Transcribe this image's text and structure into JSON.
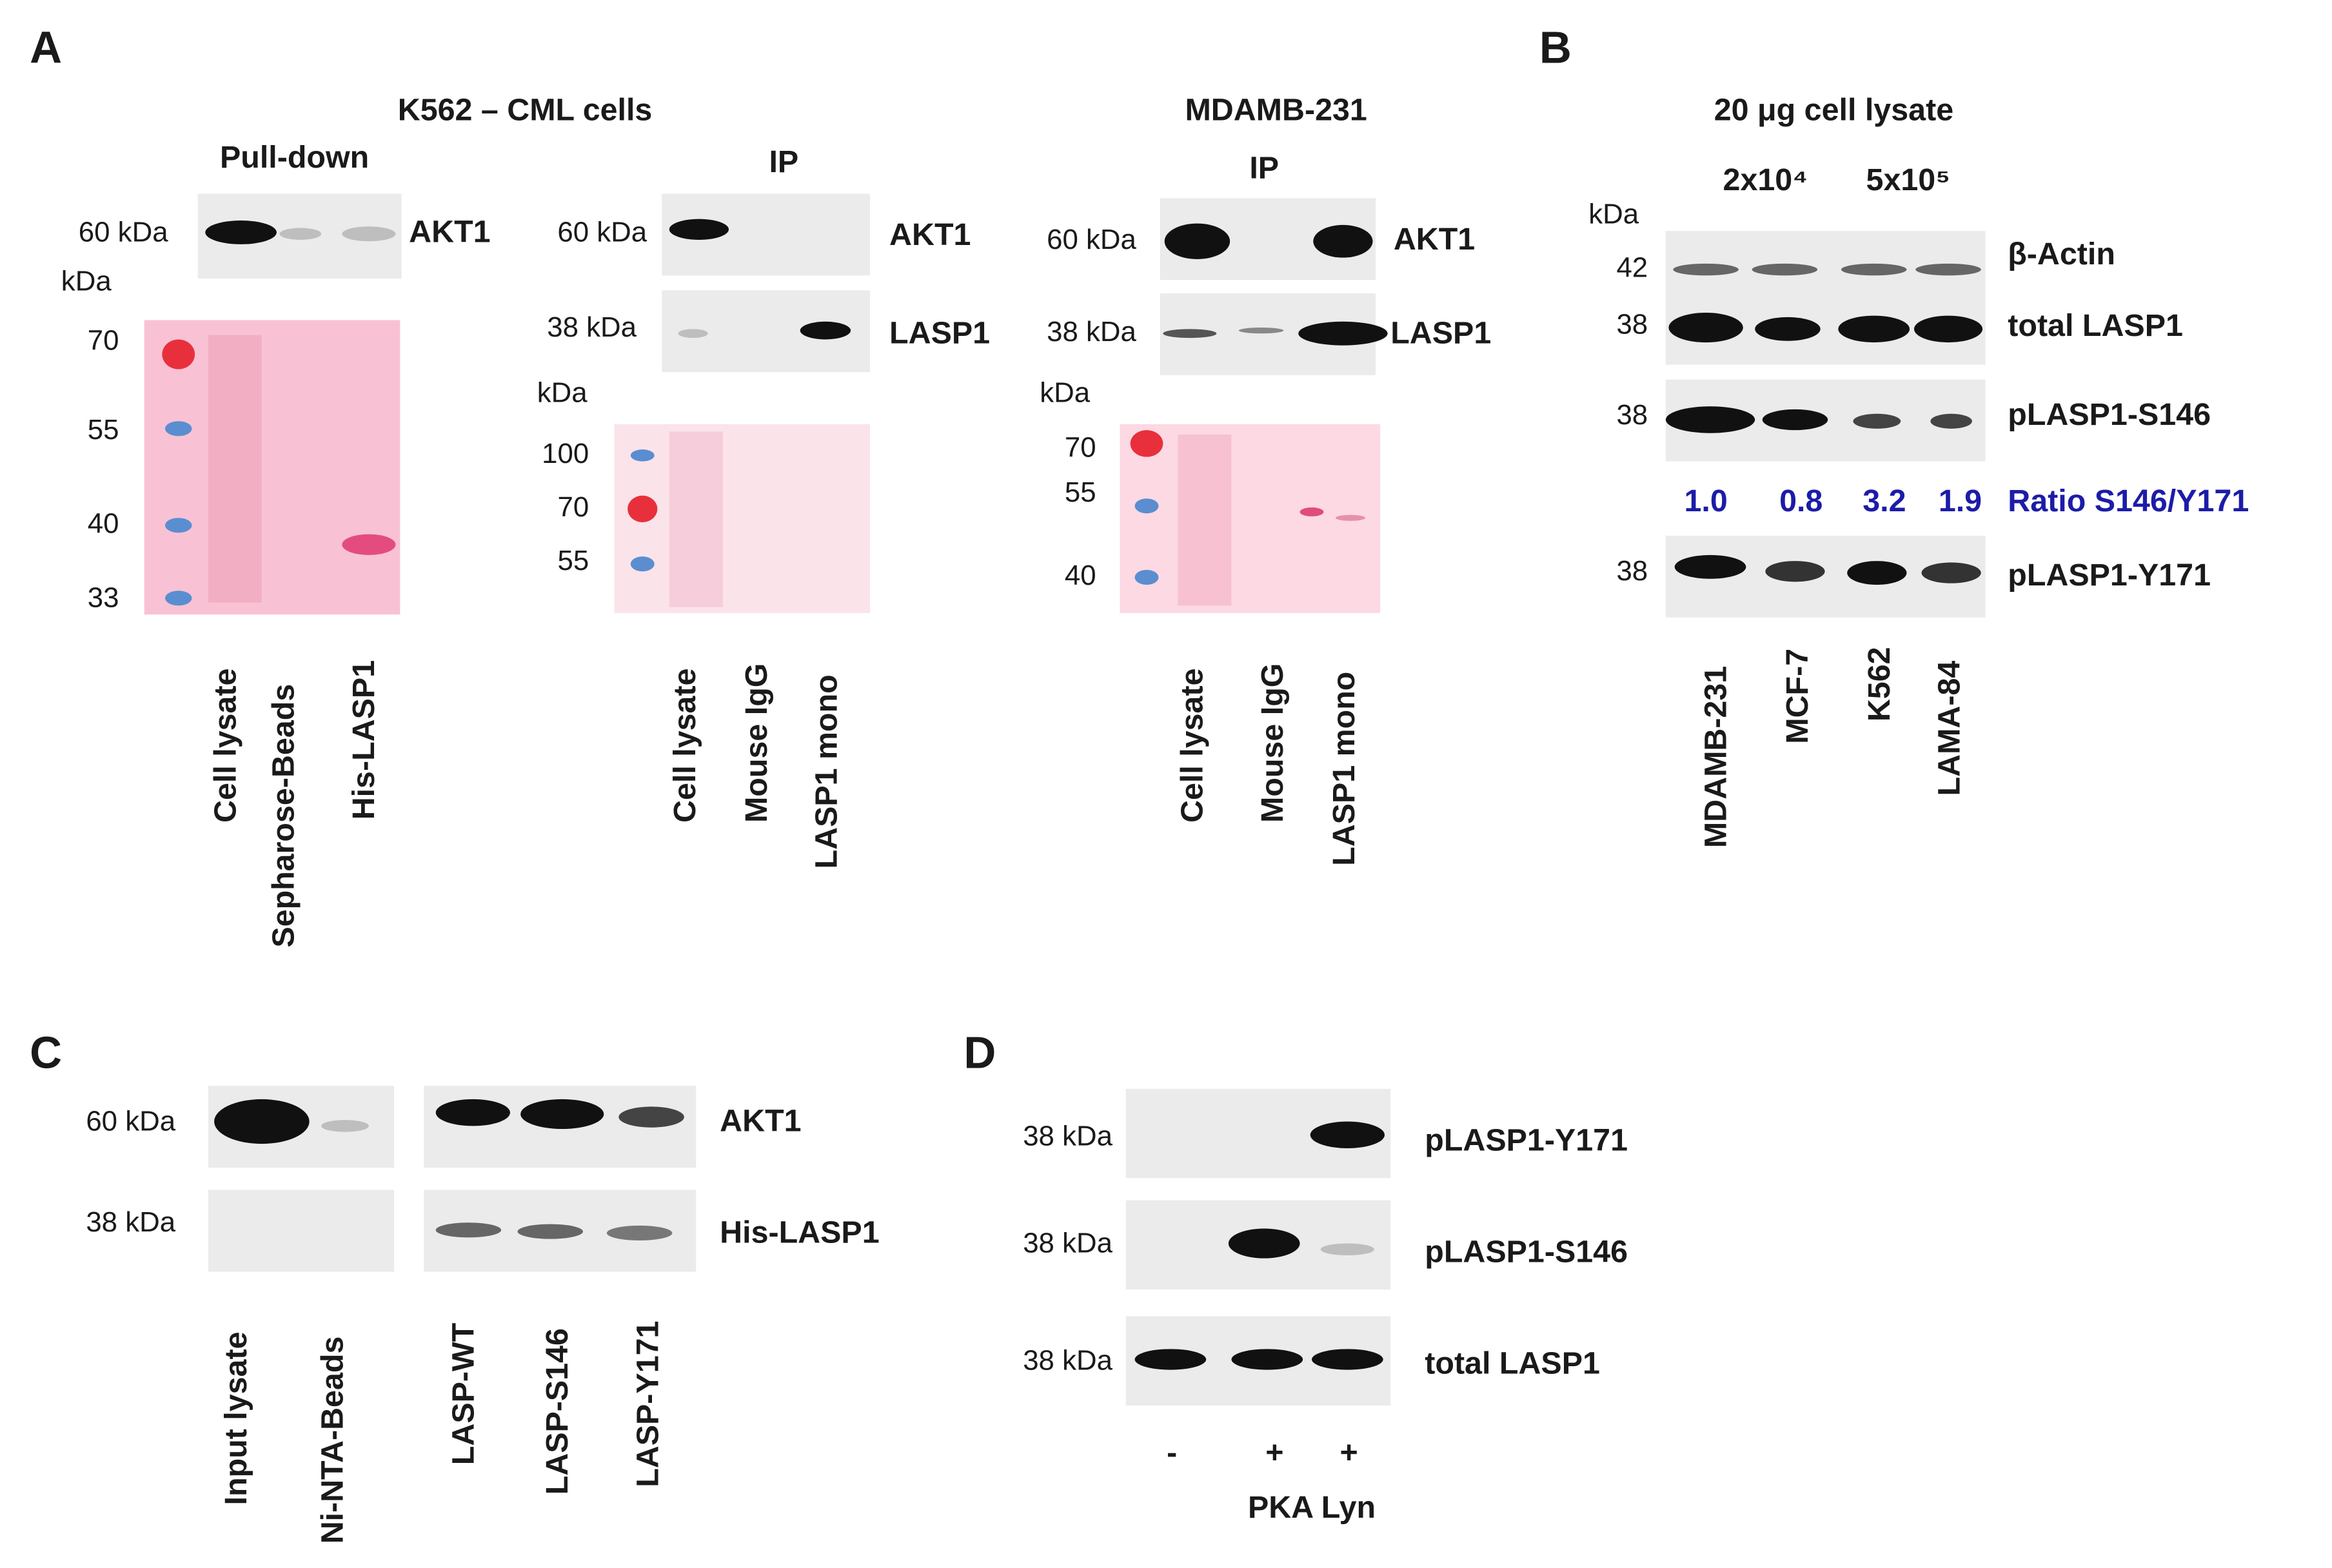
{
  "panel_labels": [
    "A",
    "B",
    "C",
    "D"
  ],
  "panel_a": {
    "k562": {
      "title": "K562 – CML cells",
      "pulldown": {
        "heading": "Pull-down",
        "mw": "60 kDa",
        "kda": "kDa",
        "protein": "AKT1",
        "markers": [
          "70",
          "55",
          "40",
          "33"
        ],
        "lanes": [
          "Cell lysate",
          "Sepharose-Beads",
          "His-LASP1"
        ]
      },
      "ip": {
        "heading": "IP",
        "mw_akt1": "60 kDa",
        "mw_lasp1": "38 kDa",
        "proteins": [
          "AKT1",
          "LASP1"
        ],
        "kda": "kDa",
        "markers": [
          "100",
          "70",
          "55"
        ],
        "lanes": [
          "Cell lysate",
          "Mouse IgG",
          "LASP1 mono"
        ]
      }
    },
    "mdamb231": {
      "title": "MDAMB-231",
      "heading": "IP",
      "mw_akt1": "60 kDa",
      "mw_lasp1": "38 kDa",
      "proteins": [
        "AKT1",
        "LASP1"
      ],
      "kda": "kDa",
      "markers": [
        "70",
        "55",
        "40"
      ],
      "lanes": [
        "Cell lysate",
        "Mouse IgG",
        "LASP1 mono"
      ]
    }
  },
  "panel_b": {
    "title": "20 μg cell lysate",
    "densities": [
      "2x10⁴",
      "5x10⁵"
    ],
    "kda": "kDa",
    "mw": [
      "42",
      "38",
      "38",
      "38"
    ],
    "proteins": [
      "β-Actin",
      "total LASP1",
      "pLASP1-S146",
      "pLASP1-Y171"
    ],
    "ratio_label": "Ratio S146/Y171",
    "ratios": [
      "1.0",
      "0.8",
      "3.2",
      "1.9"
    ],
    "lanes": [
      "MDAMB-231",
      "MCF-7",
      "K562",
      "LAMA-84"
    ]
  },
  "panel_c": {
    "mw": [
      "60 kDa",
      "38 kDa"
    ],
    "proteins": [
      "AKT1",
      "His-LASP1"
    ],
    "lanes": [
      "Input lysate",
      "Ni-NTA-Beads",
      "LASP-WT",
      "LASP-S146",
      "LASP-Y171"
    ]
  },
  "panel_d": {
    "mw": [
      "38 kDa",
      "38 kDa",
      "38 kDa"
    ],
    "proteins": [
      "pLASP1-Y171",
      "pLASP1-S146",
      "total LASP1"
    ],
    "treatments": [
      "-",
      "+",
      "+"
    ],
    "treatment_label": "PKA Lyn"
  }
}
